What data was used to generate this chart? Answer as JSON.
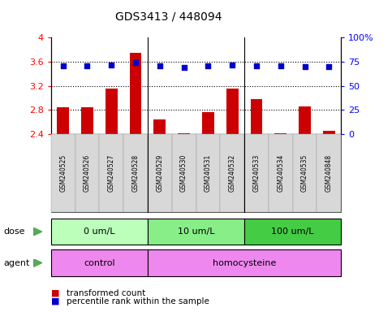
{
  "title": "GDS3413 / 448094",
  "samples": [
    "GSM240525",
    "GSM240526",
    "GSM240527",
    "GSM240528",
    "GSM240529",
    "GSM240530",
    "GSM240531",
    "GSM240532",
    "GSM240533",
    "GSM240534",
    "GSM240535",
    "GSM240848"
  ],
  "transformed_count": [
    2.85,
    2.84,
    3.15,
    3.74,
    2.64,
    2.41,
    2.76,
    3.15,
    2.98,
    2.41,
    2.86,
    2.46
  ],
  "percentile_rank_pct": [
    70.9,
    70.9,
    71.6,
    74.1,
    70.3,
    69.4,
    70.3,
    71.6,
    70.9,
    70.9,
    70.0,
    70.0
  ],
  "ylim_left": [
    2.4,
    4.0
  ],
  "ylim_right": [
    0,
    100
  ],
  "yticks_left": [
    2.4,
    2.8,
    3.2,
    3.6,
    4.0
  ],
  "ytick_labels_left": [
    "2.4",
    "2.8",
    "3.2",
    "3.6",
    "4"
  ],
  "yticks_right": [
    0,
    25,
    50,
    75,
    100
  ],
  "ytick_labels_right": [
    "0",
    "25",
    "50",
    "75",
    "100%"
  ],
  "bar_color": "#cc0000",
  "dot_color": "#0000cc",
  "dose_groups": [
    {
      "label": "0 um/L",
      "start": 0,
      "end": 3,
      "color": "#bbffbb"
    },
    {
      "label": "10 um/L",
      "start": 4,
      "end": 7,
      "color": "#88ee88"
    },
    {
      "label": "100 um/L",
      "start": 8,
      "end": 11,
      "color": "#44cc44"
    }
  ],
  "agent_extents": [
    {
      "label": "control",
      "start": 0,
      "end": 3
    },
    {
      "label": "homocysteine",
      "start": 4,
      "end": 11
    }
  ],
  "agent_color": "#ee88ee",
  "grid_yticks": [
    2.8,
    3.2,
    3.6
  ],
  "group_sep": [
    3.5,
    7.5
  ],
  "dose_label": "dose",
  "agent_label": "agent"
}
